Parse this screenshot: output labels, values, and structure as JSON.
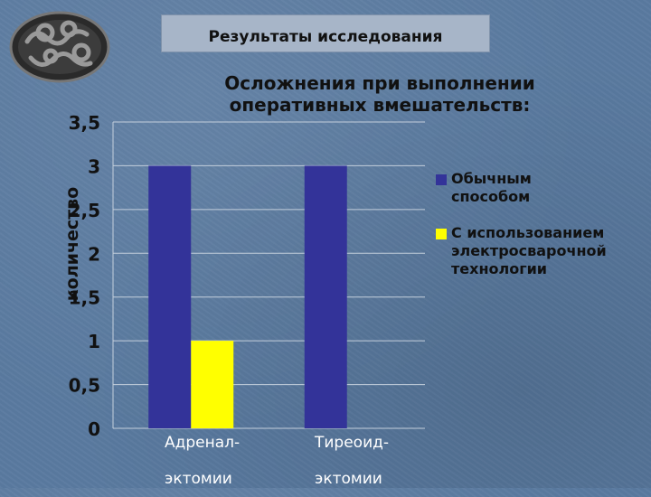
{
  "header": {
    "title": "Результаты исследования"
  },
  "chart_data": {
    "type": "bar",
    "title": "Осложнения при выполнении оперативных вмешательств:",
    "ylabel": "количество",
    "xlabel": "",
    "categories": [
      "Адренал- эктомии",
      "Тиреоид- эктомии"
    ],
    "category_lines": [
      [
        "Адренал-",
        "эктомии"
      ],
      [
        "Тиреоид-",
        "эктомии"
      ]
    ],
    "series": [
      {
        "name": "Обычным способом",
        "values": [
          3,
          3
        ],
        "color": "#333399"
      },
      {
        "name": "С использованием электросварочной технологии",
        "values": [
          1,
          0
        ],
        "color": "#ffff00"
      }
    ],
    "ylim": [
      0,
      3.5
    ],
    "yticks": [
      "0",
      "0,5",
      "1",
      "1,5",
      "2",
      "2,5",
      "3",
      "3,5"
    ],
    "grid": true,
    "legend_position": "right"
  }
}
